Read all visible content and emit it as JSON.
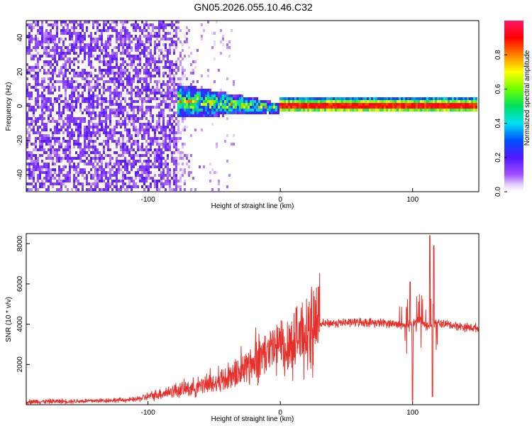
{
  "figure": {
    "title": "GN05.2026.055.10.46.C32"
  },
  "chart_data": [
    {
      "type": "heatmap",
      "title": "GN05.2026.055.10.46.C32",
      "xlabel": "Height of straight line (km)",
      "ylabel": "Frequency (Hz)",
      "xlim": [
        -192,
        150
      ],
      "ylim": [
        -50,
        50
      ],
      "xticks": [
        -100,
        0,
        100
      ],
      "yticks": [
        -40,
        -20,
        0,
        20,
        40
      ],
      "grid": false,
      "colorbar": {
        "label": "Normalized spectral amplitude",
        "range": [
          0,
          1
        ],
        "ticks": [
          0.0,
          0.2,
          0.4,
          0.6,
          0.8
        ],
        "tick_labels": [
          "0.0",
          "0.2",
          "0.4",
          "0.6",
          "0.8"
        ],
        "colormap": "rainbow (white, violet, blue, cyan, green, yellow, red, magenta)"
      },
      "regions": [
        {
          "x_range": [
            -192,
            -78
          ],
          "freq_range": [
            -50,
            50
          ],
          "amplitude": 0.1,
          "description": "broadband noise"
        },
        {
          "x_range": [
            -78,
            0
          ],
          "freq_range": [
            -10,
            10
          ],
          "amplitude": 0.35,
          "description": "emerging signal"
        },
        {
          "x_range": [
            0,
            150
          ],
          "freq_range": [
            -2,
            2
          ],
          "amplitude": 0.95,
          "description": "narrow strong line near 0 Hz"
        }
      ]
    },
    {
      "type": "line",
      "xlabel": "Height of straight line (km)",
      "ylabel": "SNR (10 * v/v)",
      "xlim": [
        -192,
        150
      ],
      "ylim": [
        0,
        8500
      ],
      "xticks": [
        -100,
        0,
        100
      ],
      "yticks": [
        2000,
        4000,
        6000,
        8000
      ],
      "grid": false,
      "color": "#e8302a",
      "x": [
        -192,
        -150,
        -110,
        -100,
        -80,
        -60,
        -40,
        -25,
        -10,
        0,
        10,
        20,
        30,
        40,
        60,
        80,
        90,
        95,
        100,
        105,
        110,
        115,
        120,
        130,
        140,
        150
      ],
      "y": [
        150,
        180,
        250,
        400,
        700,
        900,
        1300,
        1900,
        2600,
        2900,
        3200,
        3600,
        4000,
        4050,
        4100,
        4050,
        4000,
        3900,
        4000,
        4200,
        3900,
        4000,
        4050,
        3950,
        3850,
        3800
      ],
      "spikes": [
        {
          "x": 12,
          "y": 4800
        },
        {
          "x": 98,
          "y": 6100
        },
        {
          "x": 100,
          "y": 200
        },
        {
          "x": 113,
          "y": 8400
        },
        {
          "x": 116,
          "y": 7900
        },
        {
          "x": 115,
          "y": 400
        }
      ]
    }
  ]
}
